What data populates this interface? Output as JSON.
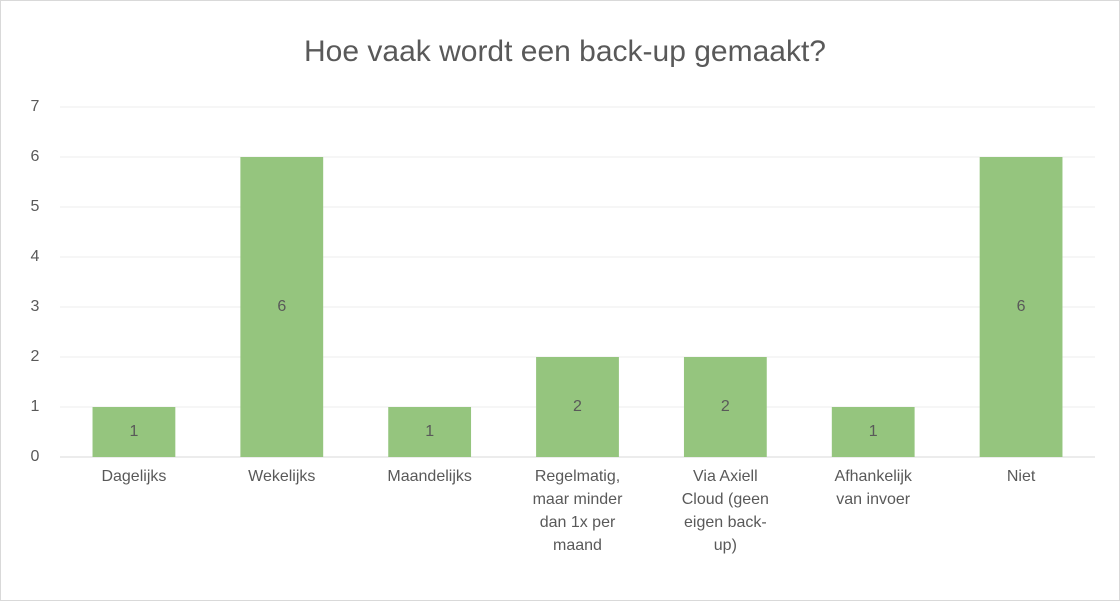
{
  "chart_data": {
    "type": "bar",
    "title": "Hoe vaak wordt een back-up gemaakt?",
    "categories": [
      "Dagelijks",
      "Wekelijks",
      "Maandelijks",
      "Regelmatig, maar minder dan 1x per maand",
      "Via Axiell Cloud (geen eigen back-up)",
      "Afhankelijk van invoer",
      "Niet"
    ],
    "values": [
      1,
      6,
      1,
      2,
      2,
      1,
      6
    ],
    "color": "#95c57e",
    "ylim": [
      0,
      7
    ],
    "yticks": [
      0,
      1,
      2,
      3,
      4,
      5,
      6,
      7
    ],
    "grid": true
  }
}
